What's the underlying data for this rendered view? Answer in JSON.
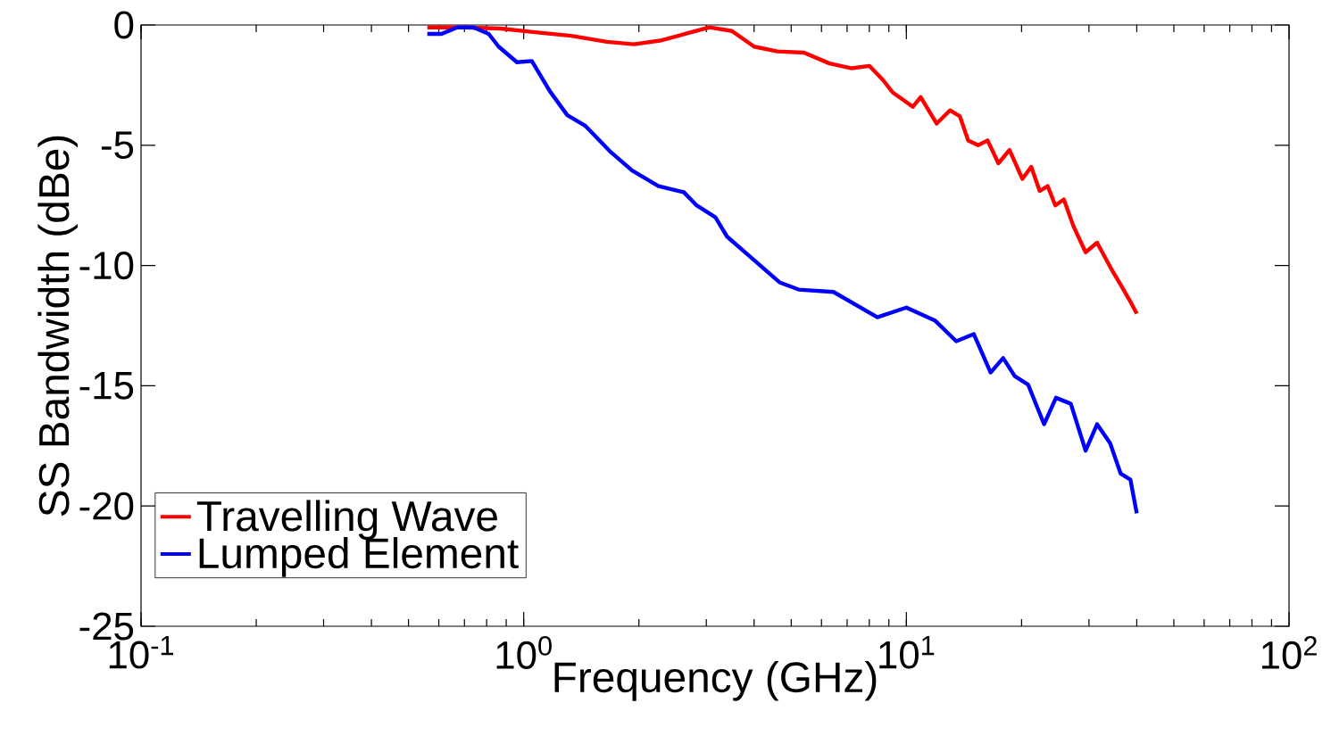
{
  "chart_data": {
    "type": "line",
    "xlabel": "Frequency (GHz)",
    "ylabel": "SS Bandwidth (dBe)",
    "log": "x",
    "grid": false,
    "legend": "bottom left",
    "marker": "none",
    "line_style": "solid",
    "xlim": [
      0.1,
      100
    ],
    "ylim": [
      -25,
      0
    ],
    "xticks": [
      {
        "value": 0.1,
        "label": "10$^{-1}$"
      },
      {
        "value": 1,
        "label": "10$^{0}$"
      },
      {
        "value": 10,
        "label": "10$^{1}$"
      },
      {
        "value": 100,
        "label": "10$^{2}$"
      }
    ],
    "yticks": [
      -25,
      -20,
      -15,
      -10,
      -5,
      0
    ],
    "series": [
      {
        "name": "Travelling Wave",
        "color": "#ff0000",
        "x": [
          0.56,
          0.7,
          0.87,
          1.07,
          1.33,
          1.65,
          1.94,
          2.27,
          2.67,
          3.06,
          3.5,
          4.0,
          4.6,
          5.4,
          6.3,
          7.2,
          8.0,
          8.7,
          9.2,
          10.4,
          10.9,
          12.0,
          13.0,
          13.8,
          14.5,
          15.4,
          16.3,
          17.4,
          18.6,
          20.1,
          21.2,
          22.3,
          23.4,
          24.5,
          25.8,
          27.3,
          29.4,
          31.5,
          34.2,
          36.3,
          38.5,
          40.0
        ],
        "values": [
          -0.1,
          -0.1,
          -0.15,
          -0.3,
          -0.45,
          -0.7,
          -0.8,
          -0.65,
          -0.35,
          -0.1,
          -0.25,
          -0.9,
          -1.1,
          -1.15,
          -1.6,
          -1.8,
          -1.7,
          -2.3,
          -2.8,
          -3.4,
          -3.0,
          -4.1,
          -3.55,
          -3.8,
          -4.8,
          -5.0,
          -4.8,
          -5.75,
          -5.2,
          -6.4,
          -5.9,
          -6.9,
          -6.7,
          -7.5,
          -7.25,
          -8.35,
          -9.45,
          -9.05,
          -10.1,
          -10.8,
          -11.5,
          -12.0
        ]
      },
      {
        "name": "Lumped Element",
        "color": "#0000ff",
        "x": [
          0.56,
          0.61,
          0.67,
          0.74,
          0.81,
          0.86,
          0.96,
          1.05,
          1.17,
          1.3,
          1.45,
          1.68,
          1.92,
          2.25,
          2.62,
          2.83,
          3.17,
          3.4,
          3.85,
          4.66,
          5.23,
          6.45,
          8.4,
          10.0,
          11.9,
          13.5,
          15.0,
          16.6,
          17.9,
          19.2,
          20.8,
          22.9,
          24.6,
          26.9,
          29.4,
          31.5,
          34.1,
          36.3,
          38.5,
          40.0
        ],
        "values": [
          -0.37,
          -0.37,
          -0.1,
          -0.1,
          -0.37,
          -0.9,
          -1.55,
          -1.5,
          -2.75,
          -3.75,
          -4.2,
          -5.25,
          -6.05,
          -6.7,
          -6.95,
          -7.5,
          -8.0,
          -8.8,
          -9.55,
          -10.7,
          -11.0,
          -11.1,
          -12.15,
          -11.75,
          -12.3,
          -13.15,
          -12.85,
          -14.45,
          -13.85,
          -14.6,
          -14.95,
          -16.6,
          -15.5,
          -15.75,
          -17.7,
          -16.6,
          -17.4,
          -18.65,
          -18.9,
          -20.3
        ]
      }
    ]
  }
}
